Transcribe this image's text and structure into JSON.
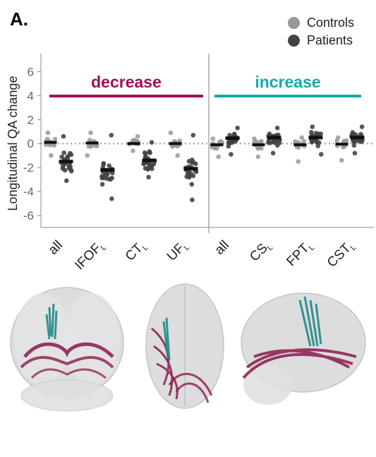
{
  "panel_label": "A.",
  "legend": {
    "controls": {
      "label": "Controls",
      "color": "#999999"
    },
    "patients": {
      "label": "Patients",
      "color": "#444444"
    }
  },
  "colors": {
    "decrease": "#a0105a",
    "increase": "#1aa8a8",
    "tract_magenta": "#8a1a4e",
    "tract_teal": "#1f8a8a"
  },
  "chart_data": {
    "type": "scatter",
    "ylabel": "Longitudinal QA change",
    "ylim": [
      -7,
      7.5
    ],
    "yticks": [
      6,
      4,
      2,
      0,
      -2,
      -4,
      -6
    ],
    "groups": [
      {
        "label": "decrease",
        "color": "#a0105a"
      },
      {
        "label": "increase",
        "color": "#1aa8a8"
      }
    ],
    "categories": [
      {
        "name": "all",
        "sub": "",
        "controls_mean": 0.1,
        "patients_mean": -1.5,
        "controls_spread": [
          -1.0,
          0.9
        ],
        "patients_spread": [
          -3.1,
          0.6
        ]
      },
      {
        "name": "IFOF",
        "sub": "L",
        "controls_mean": 0.05,
        "patients_mean": -2.2,
        "controls_spread": [
          -1.0,
          0.9
        ],
        "patients_spread": [
          -4.6,
          0.7
        ]
      },
      {
        "name": "CT",
        "sub": "L",
        "controls_mean": 0.0,
        "patients_mean": -1.4,
        "controls_spread": [
          -0.6,
          0.6
        ],
        "patients_spread": [
          -2.8,
          0.1
        ]
      },
      {
        "name": "UF",
        "sub": "L",
        "controls_mean": 0.0,
        "patients_mean": -2.1,
        "controls_spread": [
          -1.0,
          0.9
        ],
        "patients_spread": [
          -4.7,
          0.7
        ]
      },
      {
        "name": "all",
        "sub": "",
        "controls_mean": -0.1,
        "patients_mean": 0.45,
        "controls_spread": [
          -1.1,
          0.4
        ],
        "patients_spread": [
          -0.9,
          1.3
        ]
      },
      {
        "name": "CS",
        "sub": "L",
        "controls_mean": -0.1,
        "patients_mean": 0.5,
        "controls_spread": [
          -1.1,
          0.4
        ],
        "patients_spread": [
          -0.8,
          1.3
        ]
      },
      {
        "name": "FPT",
        "sub": "L",
        "controls_mean": -0.1,
        "patients_mean": 0.5,
        "controls_spread": [
          -1.5,
          0.5
        ],
        "patients_spread": [
          -0.9,
          1.4
        ]
      },
      {
        "name": "CST",
        "sub": "L",
        "controls_mean": -0.05,
        "patients_mean": 0.5,
        "controls_spread": [
          -1.4,
          0.5
        ],
        "patients_spread": [
          -0.8,
          1.4
        ]
      }
    ]
  }
}
